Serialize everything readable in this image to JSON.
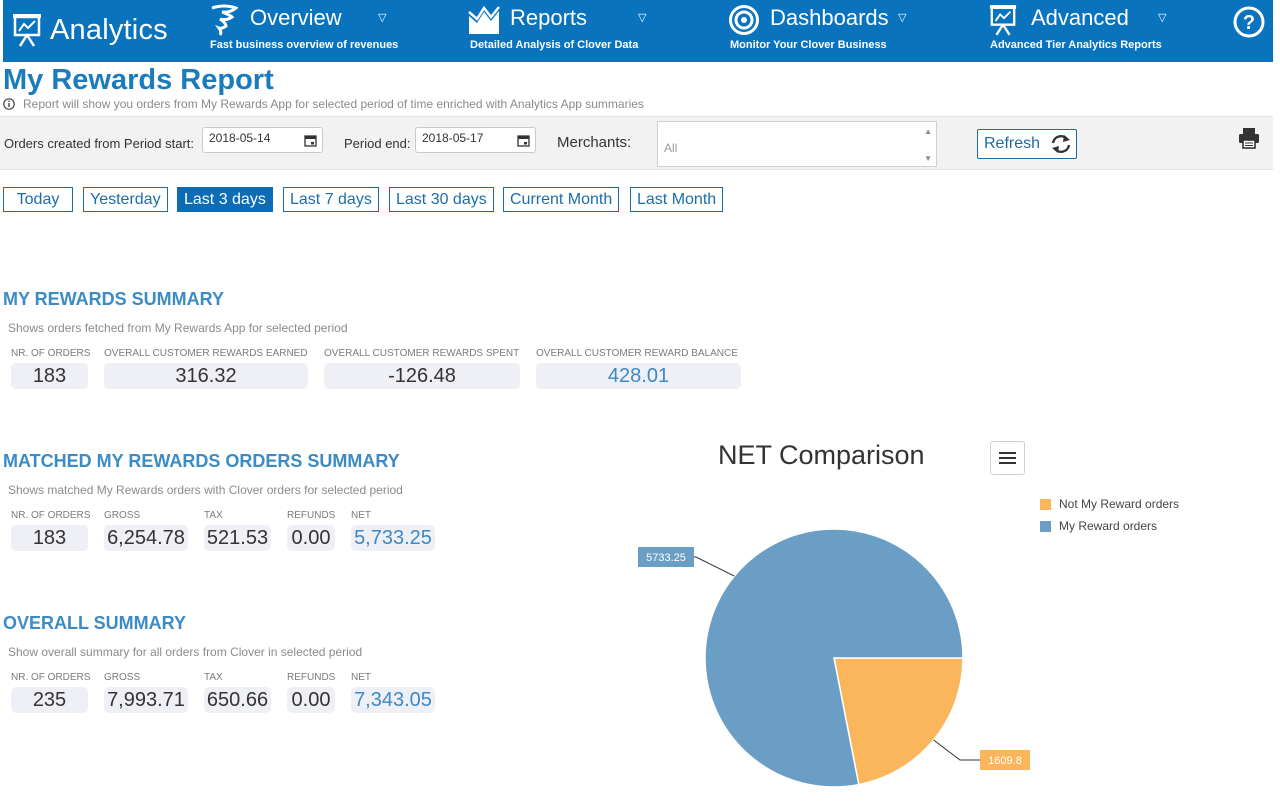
{
  "nav": {
    "brand": "Analytics",
    "items": [
      {
        "title": "Overview",
        "subtitle": "Fast business overview of revenues"
      },
      {
        "title": "Reports",
        "subtitle": "Detailed Analysis of Clover Data"
      },
      {
        "title": "Dashboards",
        "subtitle": "Monitor Your Clover Business"
      },
      {
        "title": "Advanced",
        "subtitle": "Advanced Tier Analytics Reports"
      }
    ],
    "caret": "▽",
    "help": "?"
  },
  "page": {
    "title": "My Rewards Report",
    "info": "Report will show you orders from My Rewards App for selected period of time enriched with Analytics App summaries"
  },
  "filters": {
    "start_label": "Orders created from Period start:",
    "start_value": "2018-05-14",
    "end_label": "Period end:",
    "end_value": "2018-05-17",
    "merchants_label": "Merchants:",
    "merchants_placeholder": "All",
    "refresh_label": "Refresh"
  },
  "periods": [
    {
      "label": "Today",
      "active": false
    },
    {
      "label": "Yesterday",
      "active": false
    },
    {
      "label": "Last 3 days",
      "active": true
    },
    {
      "label": "Last 7 days",
      "active": false
    },
    {
      "label": "Last 30 days",
      "active": false
    },
    {
      "label": "Current Month",
      "active": false
    },
    {
      "label": "Last Month",
      "active": false
    }
  ],
  "rewards_summary": {
    "title": "MY REWARDS SUMMARY",
    "description": "Shows orders fetched from My Rewards App for selected period",
    "stats": [
      {
        "label": "NR. OF ORDERS",
        "value": "183"
      },
      {
        "label": "OVERALL CUSTOMER REWARDS EARNED",
        "value": "316.32"
      },
      {
        "label": "OVERALL CUSTOMER REWARDS SPENT",
        "value": "-126.48"
      },
      {
        "label": "OVERALL CUSTOMER REWARD BALANCE",
        "value": "428.01"
      }
    ]
  },
  "matched_summary": {
    "title": "MATCHED MY REWARDS ORDERS SUMMARY",
    "description": "Shows matched My Rewards orders with Clover orders for selected period",
    "stats": [
      {
        "label": "NR. OF ORDERS",
        "value": "183"
      },
      {
        "label": "GROSS",
        "value": "6,254.78"
      },
      {
        "label": "TAX",
        "value": "521.53"
      },
      {
        "label": "REFUNDS",
        "value": "0.00"
      },
      {
        "label": "NET",
        "value": "5,733.25"
      }
    ]
  },
  "overall_summary": {
    "title": "OVERALL SUMMARY",
    "description": "Show overall summary for all orders from Clover in selected period",
    "stats": [
      {
        "label": "NR. OF ORDERS",
        "value": "235"
      },
      {
        "label": "GROSS",
        "value": "7,993.71"
      },
      {
        "label": "TAX",
        "value": "650.66"
      },
      {
        "label": "REFUNDS",
        "value": "0.00"
      },
      {
        "label": "NET",
        "value": "7,343.05"
      }
    ]
  },
  "colors": {
    "nav_bg": "#0a73be",
    "accent": "#1a7bbd",
    "my_reward": "#6a9ec5",
    "not_my_reward": "#fbb65b"
  },
  "chart_data": {
    "type": "pie",
    "title": "NET Comparison",
    "legend_position": "right",
    "slices": [
      {
        "name": "Not My Reward orders",
        "value": 1609.8,
        "label": "1609.8",
        "color": "#fbb65b"
      },
      {
        "name": "My Reward orders",
        "value": 5733.25,
        "label": "5733.25",
        "color": "#6a9ec5"
      }
    ]
  }
}
